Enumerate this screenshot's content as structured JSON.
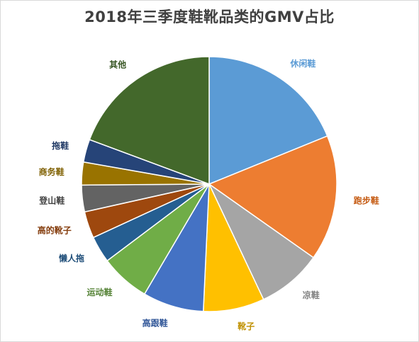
{
  "chart_data": {
    "type": "pie",
    "title": "2018年三季度鞋靴品类的GMV占比",
    "start_angle": 0,
    "direction": "clockwise",
    "slices": [
      {
        "label": "休闲鞋",
        "value": 19.5,
        "color": "#5b9bd5",
        "label_color": "#5b9bd5"
      },
      {
        "label": "跑步鞋",
        "value": 16.5,
        "color": "#ed7d31",
        "label_color": "#c55a11"
      },
      {
        "label": "凉鞋",
        "value": 8.5,
        "color": "#a5a5a5",
        "label_color": "#7f7f7f"
      },
      {
        "label": "靴子",
        "value": 8.0,
        "color": "#ffc000",
        "label_color": "#bf9000"
      },
      {
        "label": "高跟鞋",
        "value": 8.0,
        "color": "#4472c4",
        "label_color": "#2f5597"
      },
      {
        "label": "运动鞋",
        "value": 6.5,
        "color": "#70ad47",
        "label_color": "#548235"
      },
      {
        "label": "懒人拖",
        "value": 3.5,
        "color": "#255e91",
        "label_color": "#1f4e79"
      },
      {
        "label": "高的靴子",
        "value": 3.5,
        "color": "#9e480e",
        "label_color": "#843c0c"
      },
      {
        "label": "登山鞋",
        "value": 3.5,
        "color": "#636363",
        "label_color": "#404040"
      },
      {
        "label": "商务鞋",
        "value": 3.0,
        "color": "#997300",
        "label_color": "#7f6000"
      },
      {
        "label": "拖鞋",
        "value": 3.0,
        "color": "#264478",
        "label_color": "#1f3864"
      },
      {
        "label": "其他",
        "value": 20.0,
        "color": "#43682b",
        "label_color": "#375623"
      }
    ]
  }
}
